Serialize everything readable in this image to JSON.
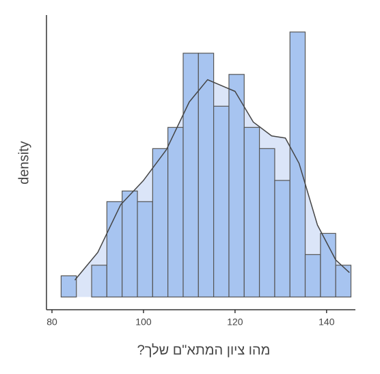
{
  "chart_data": {
    "type": "histogram",
    "x_label": "מהו ציון המתא\"ם שלך?",
    "y_label": "density",
    "bins": [
      82,
      85.33,
      88.67,
      92,
      95.33,
      98.67,
      102,
      105.33,
      108.67,
      112,
      115.33,
      118.67,
      122,
      125.33,
      128.67,
      132,
      135.33,
      138.67,
      142,
      145.33
    ],
    "counts": [
      2,
      0,
      3,
      9,
      10,
      9,
      14,
      16,
      23,
      23,
      18,
      21,
      16,
      14,
      11,
      25,
      4,
      6,
      3
    ],
    "color": "#a7c4f0",
    "density_curve": {
      "color": "#dbe5f8",
      "x": [
        85,
        90,
        95,
        100,
        105,
        110,
        114,
        120,
        124,
        128,
        131,
        134,
        138,
        142,
        145
      ],
      "values": [
        1.6,
        4.2,
        8.7,
        11.0,
        13.9,
        18.4,
        20.5,
        19.4,
        16.5,
        15.2,
        15.0,
        12.6,
        6.8,
        3.5,
        2.3
      ]
    },
    "xlim": [
      78.8,
      146.3
    ],
    "xticks": [
      80,
      100,
      120,
      140
    ],
    "ylim": [
      -1.2,
      26.6
    ]
  }
}
